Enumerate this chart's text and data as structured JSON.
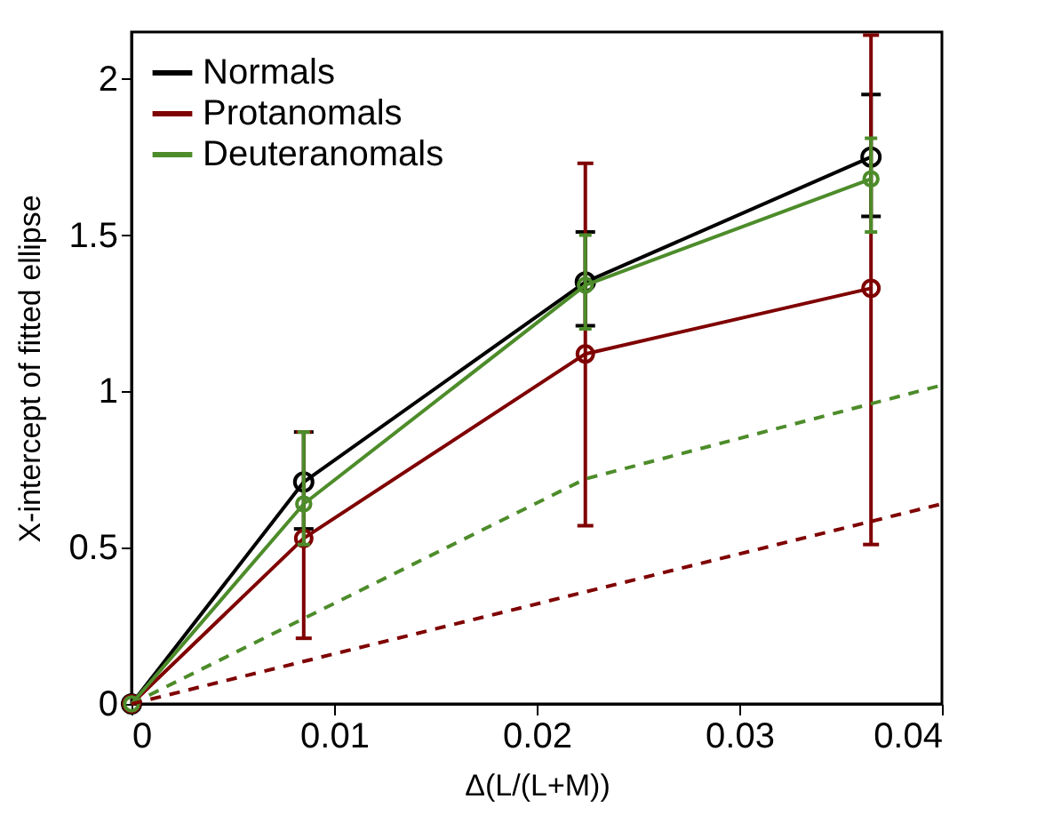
{
  "chart_data": {
    "type": "line",
    "xlabel": "Δ(L/(L+M))",
    "ylabel": "X-intercept of fitted ellipse",
    "xlim": [
      0,
      0.04
    ],
    "ylim": [
      0,
      2.15
    ],
    "xticks": [
      0,
      0.01,
      0.02,
      0.03,
      0.04
    ],
    "yticks": [
      0,
      0.5,
      1,
      1.5,
      2
    ],
    "grid": false,
    "legend": "top left",
    "marker": "circle",
    "series": [
      {
        "name": "Normals",
        "color": "#000000",
        "x": [
          0,
          0.0085,
          0.0224,
          0.0365
        ],
        "values": [
          0,
          0.71,
          1.35,
          1.75
        ],
        "errors": [
          null,
          [
            0.56,
            0.87
          ],
          [
            1.21,
            1.51
          ],
          [
            1.56,
            1.95
          ]
        ]
      },
      {
        "name": "Protanomals",
        "color": "#7f0000",
        "x": [
          0,
          0.0085,
          0.0224,
          0.0365
        ],
        "values": [
          0,
          0.53,
          1.12,
          1.33
        ],
        "errors": [
          null,
          [
            0.21,
            0.87
          ],
          [
            0.57,
            1.73
          ],
          [
            0.51,
            2.14
          ]
        ]
      },
      {
        "name": "Deuteranomals",
        "color": "#4d8c2a",
        "x": [
          0,
          0.0085,
          0.0224,
          0.0365
        ],
        "values": [
          0,
          0.64,
          1.34,
          1.68
        ],
        "errors": [
          null,
          [
            0.51,
            0.87
          ],
          [
            1.2,
            1.5
          ],
          [
            1.51,
            1.81
          ]
        ]
      },
      {
        "color": "#4d8c2a",
        "x": [
          0,
          0.0224,
          0.04
        ],
        "values": [
          0,
          0.72,
          1.02
        ],
        "line_style": "dashed",
        "marker": "none"
      },
      {
        "color": "#7f0000",
        "x": [
          0,
          0.04
        ],
        "values": [
          0,
          0.64
        ],
        "line_style": "dashed",
        "marker": "none"
      }
    ]
  }
}
